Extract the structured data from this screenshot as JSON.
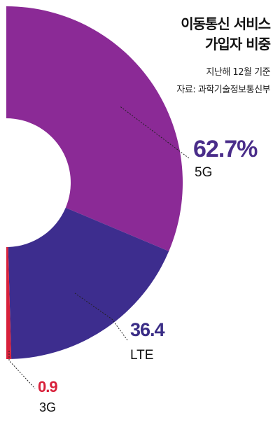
{
  "header": {
    "title_line1": "이동통신 서비스",
    "title_line2": "가입자 비중",
    "note_date": "지난해 12월 기준",
    "note_source": "자료: 과학기술정보통신부"
  },
  "chart_data": {
    "type": "pie",
    "style": "donut-half",
    "unit": "%",
    "slices": [
      {
        "label": "5G",
        "value": 62.7,
        "value_text": "62.7%",
        "color": "#8b2a96",
        "value_color": "#4a2d8a"
      },
      {
        "label": "LTE",
        "value": 36.4,
        "value_text": "36.4",
        "color": "#3d2d8e",
        "value_color": "#3a2d86"
      },
      {
        "label": "3G",
        "value": 0.9,
        "value_text": "0.9",
        "color": "#d8203a",
        "value_color": "#d8203a"
      }
    ]
  }
}
